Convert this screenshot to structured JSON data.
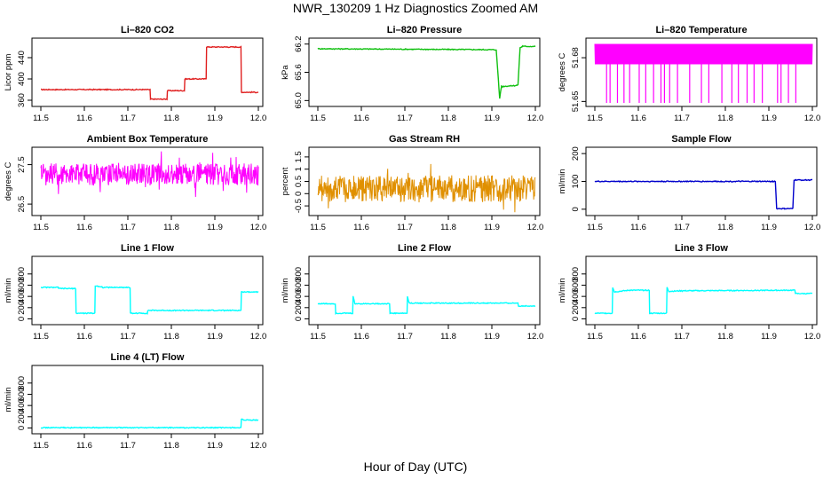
{
  "title": "NWR_130209  1 Hz Diagnostics Zoomed AM",
  "xlabel": "Hour of Day (UTC)",
  "colors": {
    "co2": "#e02020",
    "pressure": "#10c010",
    "temperature": "#ff00ff",
    "rh": "#e09000",
    "sample_flow": "#0000cc",
    "line_flow": "#00ffff"
  },
  "chart_data": [
    {
      "id": "co2",
      "type": "line",
      "title": "Li–820 CO2",
      "ylabel": "Licor ppm",
      "xlim": [
        11.5,
        12.0
      ],
      "ylim": [
        355,
        470
      ],
      "yticks": [
        360,
        400,
        440
      ],
      "color": "#e02020",
      "series": [
        {
          "x": [
            11.5,
            11.751,
            11.752,
            11.79,
            11.791,
            11.83,
            11.831,
            11.88,
            11.881,
            11.96,
            11.961,
            12.0
          ],
          "y": [
            380,
            380,
            362,
            362,
            378,
            378,
            400,
            400,
            460,
            460,
            375,
            375
          ]
        }
      ]
    },
    {
      "id": "pressure",
      "type": "line",
      "title": "Li–820 Pressure",
      "ylabel": "kPa",
      "xlim": [
        11.5,
        12.0
      ],
      "ylim": [
        64.95,
        66.25
      ],
      "yticks": [
        65.0,
        65.6,
        66.2
      ],
      "color": "#10c010",
      "series": [
        {
          "x": [
            11.5,
            11.91,
            11.918,
            11.922,
            11.925,
            11.955,
            11.96,
            11.965,
            11.97,
            12.0
          ],
          "y": [
            66.1,
            66.08,
            65.05,
            65.3,
            65.3,
            65.32,
            65.33,
            66.12,
            66.15,
            66.15
          ]
        }
      ]
    },
    {
      "id": "temperature",
      "type": "line",
      "title": "Li–820 Temperature",
      "ylabel": "degrees C",
      "xlim": [
        11.5,
        12.0
      ],
      "ylim": [
        51.649,
        51.691
      ],
      "yticks": [
        51.65,
        51.68
      ],
      "noise": {
        "low": 51.6755,
        "high": 51.6895,
        "dips": 51.649,
        "dip_x": [
          11.527,
          11.535,
          11.552,
          11.567,
          11.58,
          11.602,
          11.617,
          11.635,
          11.652,
          11.66,
          11.672,
          11.69,
          11.718,
          11.745,
          11.762,
          11.792,
          11.815,
          11.83,
          11.85,
          11.866,
          11.885,
          11.92,
          11.928,
          11.945,
          11.962
        ]
      },
      "color": "#ff00ff"
    },
    {
      "id": "ambient",
      "type": "line",
      "title": "Ambient Box Temperature",
      "ylabel": "degrees C",
      "xlim": [
        11.5,
        12.0
      ],
      "ylim": [
        26.3,
        27.85
      ],
      "yticks": [
        26.5,
        27.5
      ],
      "noise": {
        "center": 27.25,
        "amp": 0.28
      },
      "color": "#ff00ff"
    },
    {
      "id": "rh",
      "type": "line",
      "title": "Gas Stream RH",
      "ylabel": "percent",
      "xlim": [
        11.5,
        12.0
      ],
      "ylim": [
        -0.75,
        1.75
      ],
      "yticks": [
        -0.5,
        0.0,
        0.5,
        1.0,
        1.5
      ],
      "noise": {
        "center": 0.2,
        "amp": 0.55
      },
      "color": "#e09000"
    },
    {
      "id": "sample_flow",
      "type": "line",
      "title": "Sample Flow",
      "ylabel": "ml/min",
      "xlim": [
        11.5,
        12.0
      ],
      "ylim": [
        -10,
        210
      ],
      "yticks": [
        0,
        100,
        200
      ],
      "color": "#0000cc",
      "series": [
        {
          "x": [
            11.5,
            11.915,
            11.918,
            11.955,
            11.958,
            12.0
          ],
          "y": [
            100,
            100,
            2,
            2,
            105,
            105
          ]
        }
      ]
    },
    {
      "id": "line1",
      "type": "line",
      "title": "Line 1 Flow",
      "ylabel": "ml/min",
      "xlim": [
        11.5,
        12.0
      ],
      "ylim": [
        -40,
        1050
      ],
      "yticks": [
        0,
        200,
        400,
        600,
        800
      ],
      "color": "#00ffff",
      "series": [
        {
          "x": [
            11.5,
            11.54,
            11.541,
            11.58,
            11.581,
            11.624,
            11.625,
            11.64,
            11.641,
            11.705,
            11.706,
            11.745,
            11.746,
            11.96,
            11.961,
            12.0
          ],
          "y": [
            560,
            560,
            540,
            540,
            100,
            100,
            590,
            570,
            560,
            560,
            100,
            100,
            150,
            150,
            480,
            480
          ]
        }
      ]
    },
    {
      "id": "line2",
      "type": "line",
      "title": "Line 2 Flow",
      "ylabel": "ml/min",
      "xlim": [
        11.5,
        12.0
      ],
      "ylim": [
        -40,
        1050
      ],
      "yticks": [
        0,
        200,
        400,
        600,
        800
      ],
      "color": "#00ffff",
      "series": [
        {
          "x": [
            11.5,
            11.54,
            11.541,
            11.58,
            11.581,
            11.585,
            11.665,
            11.666,
            11.705,
            11.706,
            11.71,
            11.96,
            11.961,
            12.0
          ],
          "y": [
            270,
            270,
            100,
            100,
            400,
            270,
            270,
            100,
            100,
            400,
            280,
            280,
            230,
            230
          ]
        }
      ]
    },
    {
      "id": "line3",
      "type": "line",
      "title": "Line 3 Flow",
      "ylabel": "ml/min",
      "xlim": [
        11.5,
        12.0
      ],
      "ylim": [
        -40,
        1050
      ],
      "yticks": [
        0,
        200,
        400,
        600,
        800
      ],
      "color": "#00ffff",
      "series": [
        {
          "x": [
            11.5,
            11.54,
            11.541,
            11.545,
            11.58,
            11.625,
            11.626,
            11.665,
            11.666,
            11.67,
            11.7,
            11.96,
            11.961,
            12.0
          ],
          "y": [
            100,
            100,
            560,
            480,
            510,
            510,
            100,
            100,
            560,
            490,
            500,
            510,
            450,
            450
          ]
        }
      ]
    },
    {
      "id": "line4",
      "type": "line",
      "title": "Line 4 (LT) Flow",
      "ylabel": "ml/min",
      "xlim": [
        11.5,
        12.0
      ],
      "ylim": [
        -40,
        1050
      ],
      "yticks": [
        0,
        200,
        400,
        600,
        800
      ],
      "color": "#00ffff",
      "series": [
        {
          "x": [
            11.5,
            11.96,
            11.961,
            11.965,
            12.0
          ],
          "y": [
            5,
            5,
            160,
            140,
            140
          ]
        }
      ]
    }
  ],
  "xticks": [
    11.5,
    11.6,
    11.7,
    11.8,
    11.9,
    12.0
  ]
}
